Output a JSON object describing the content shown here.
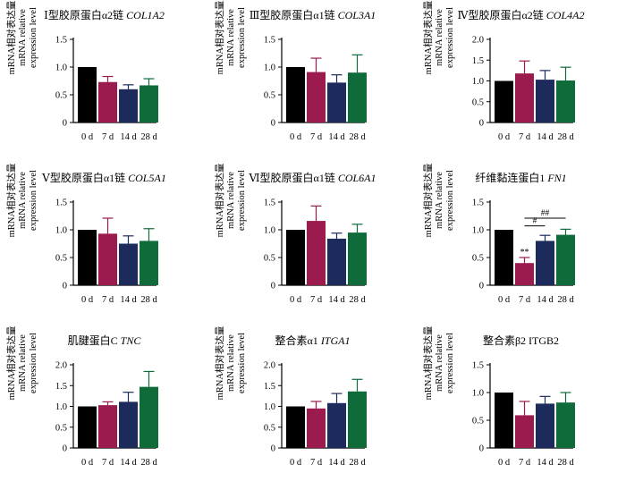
{
  "ylabel": {
    "line1": "mRNA相对表达量",
    "line2": "mRNA relative",
    "line3": "expression level"
  },
  "categories": [
    "0 d",
    "7 d",
    "14 d",
    "28 d"
  ],
  "colors": [
    "#000000",
    "#9b1b4f",
    "#1c2a5c",
    "#0f6b3a"
  ],
  "chart_data": [
    {
      "type": "bar",
      "title_cn": "Ⅰ型胶原蛋白α2链",
      "title_gene": "COL1A2",
      "gene_italic": true,
      "categories": [
        "0 d",
        "7 d",
        "14 d",
        "28 d"
      ],
      "values": [
        1.0,
        0.73,
        0.6,
        0.67
      ],
      "errors": [
        0,
        0.1,
        0.08,
        0.12
      ],
      "ylim": [
        0,
        1.5
      ],
      "yticks": [
        "0",
        "0.5",
        "1.0",
        "1.5"
      ],
      "annotations": []
    },
    {
      "type": "bar",
      "title_cn": "Ⅲ型胶原蛋白α1链",
      "title_gene": "COL3A1",
      "gene_italic": true,
      "categories": [
        "0 d",
        "7 d",
        "14 d",
        "28 d"
      ],
      "values": [
        1.0,
        0.91,
        0.72,
        0.9
      ],
      "errors": [
        0,
        0.25,
        0.14,
        0.32
      ],
      "ylim": [
        0,
        1.5
      ],
      "yticks": [
        "0",
        "0.5",
        "1.0",
        "1.5"
      ],
      "annotations": []
    },
    {
      "type": "bar",
      "title_cn": "Ⅳ型胶原蛋白α2链",
      "title_gene": "COL4A2",
      "gene_italic": true,
      "categories": [
        "0 d",
        "7 d",
        "14 d",
        "28 d"
      ],
      "values": [
        1.0,
        1.18,
        1.03,
        1.01
      ],
      "errors": [
        0,
        0.3,
        0.22,
        0.32
      ],
      "ylim": [
        0,
        2.0
      ],
      "yticks": [
        "0",
        "0.5",
        "1.0",
        "1.5",
        "2.0"
      ],
      "annotations": []
    },
    {
      "type": "bar",
      "title_cn": "Ⅴ型胶原蛋白α1链",
      "title_gene": "COL5A1",
      "gene_italic": true,
      "categories": [
        "0 d",
        "7 d",
        "14 d",
        "28 d"
      ],
      "values": [
        1.0,
        0.93,
        0.75,
        0.8
      ],
      "errors": [
        0,
        0.28,
        0.14,
        0.22
      ],
      "ylim": [
        0,
        1.5
      ],
      "yticks": [
        "0",
        "0.5",
        "1.0",
        "1.5"
      ],
      "annotations": []
    },
    {
      "type": "bar",
      "title_cn": "Ⅵ型胶原蛋白α1链",
      "title_gene": "COL6A1",
      "gene_italic": true,
      "categories": [
        "0 d",
        "7 d",
        "14 d",
        "28 d"
      ],
      "values": [
        1.0,
        1.16,
        0.84,
        0.95
      ],
      "errors": [
        0,
        0.27,
        0.1,
        0.15
      ],
      "ylim": [
        0,
        1.5
      ],
      "yticks": [
        "0",
        "0.5",
        "1.0",
        "1.5"
      ],
      "annotations": []
    },
    {
      "type": "bar",
      "title_cn": "纤维黏连蛋白1",
      "title_gene": "FN1",
      "gene_italic": true,
      "categories": [
        "0 d",
        "7 d",
        "14 d",
        "28 d"
      ],
      "values": [
        1.0,
        0.4,
        0.8,
        0.91
      ],
      "errors": [
        0,
        0.1,
        0.1,
        0.1
      ],
      "ylim": [
        0,
        1.5
      ],
      "yticks": [
        "0",
        "0.5",
        "1.0",
        "1.5"
      ],
      "annotations": [
        {
          "text": "**",
          "bar": 1
        },
        {
          "text": "#",
          "from": 1,
          "to": 2,
          "level": 1.07
        },
        {
          "text": "##",
          "from": 1,
          "to": 3,
          "level": 1.21
        }
      ]
    },
    {
      "type": "bar",
      "title_cn": "肌腱蛋白C",
      "title_gene": "TNC",
      "gene_italic": true,
      "categories": [
        "0 d",
        "7 d",
        "14 d",
        "28 d"
      ],
      "values": [
        1.0,
        1.03,
        1.11,
        1.47
      ],
      "errors": [
        0,
        0.08,
        0.23,
        0.37
      ],
      "ylim": [
        0,
        2.0
      ],
      "yticks": [
        "0",
        "0.5",
        "1.0",
        "1.5",
        "2.0"
      ],
      "annotations": []
    },
    {
      "type": "bar",
      "title_cn": "整合素α1",
      "title_gene": "ITGA1",
      "gene_italic": true,
      "categories": [
        "0 d",
        "7 d",
        "14 d",
        "28 d"
      ],
      "values": [
        1.0,
        0.95,
        1.08,
        1.36
      ],
      "errors": [
        0,
        0.17,
        0.23,
        0.29
      ],
      "ylim": [
        0,
        2.0
      ],
      "yticks": [
        "0",
        "0.5",
        "1.0",
        "1.5",
        "2.0"
      ],
      "annotations": []
    },
    {
      "type": "bar",
      "title_cn": "整合素β2",
      "title_gene": "ITGB2",
      "gene_italic": false,
      "categories": [
        "0 d",
        "7 d",
        "14 d",
        "28 d"
      ],
      "values": [
        1.0,
        0.59,
        0.8,
        0.82
      ],
      "errors": [
        0,
        0.25,
        0.13,
        0.18
      ],
      "ylim": [
        0,
        1.5
      ],
      "yticks": [
        "0",
        "0.5",
        "1.0",
        "1.5"
      ],
      "annotations": []
    }
  ]
}
